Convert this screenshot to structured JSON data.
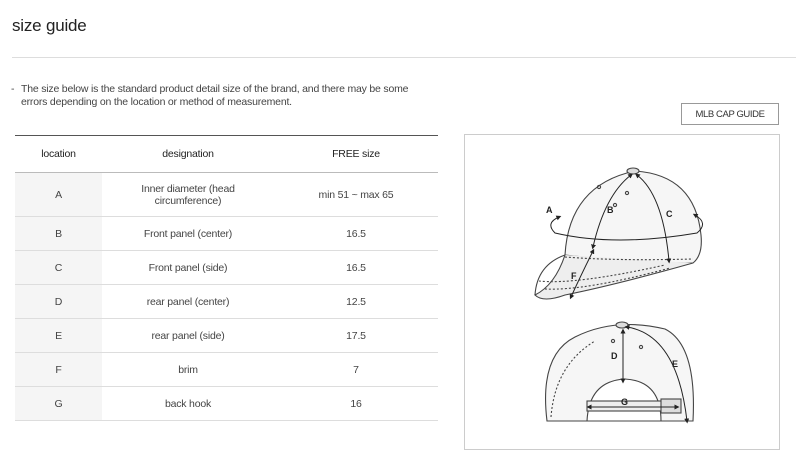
{
  "page": {
    "title": "size guide",
    "notice_dash": "-",
    "notice": "The size below is the standard product detail size of the brand, and there may be some errors depending on the location or method of measurement.",
    "guide_button": "MLB CAP GUIDE"
  },
  "table": {
    "headers": [
      "location",
      "designation",
      "FREE size"
    ],
    "rows": [
      {
        "location": "A",
        "designation": "Inner diameter (head circumference)",
        "size": "min 51 ~ max 65"
      },
      {
        "location": "B",
        "designation": "Front panel (center)",
        "size": "16.5"
      },
      {
        "location": "C",
        "designation": "Front panel (side)",
        "size": "16.5"
      },
      {
        "location": "D",
        "designation": "rear panel (center)",
        "size": "12.5"
      },
      {
        "location": "E",
        "designation": "rear panel (side)",
        "size": "17.5"
      },
      {
        "location": "F",
        "designation": "brim",
        "size": "7"
      },
      {
        "location": "G",
        "designation": "back hook",
        "size": "16"
      }
    ]
  },
  "diagram": {
    "labels": {
      "A": "A",
      "B": "B",
      "C": "C",
      "D": "D",
      "E": "E",
      "F": "F",
      "G": "G"
    },
    "icons": [
      "cap-front-illustration",
      "cap-back-illustration"
    ]
  }
}
